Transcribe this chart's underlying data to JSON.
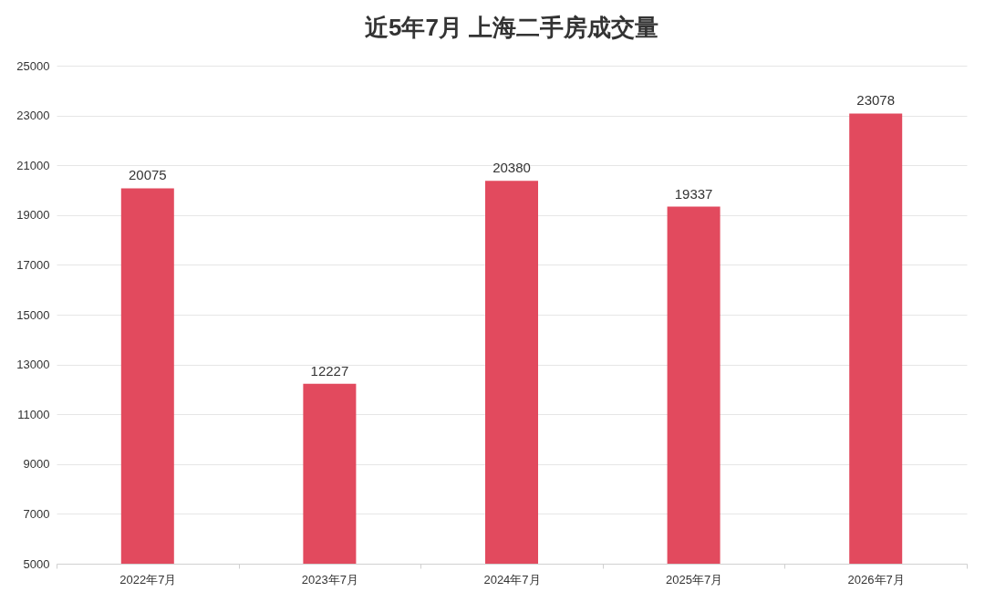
{
  "chart_data": {
    "type": "bar",
    "title": "近5年7月 上海二手房成交量",
    "categories": [
      "2022年7月",
      "2023年7月",
      "2024年7月",
      "2025年7月",
      "2026年7月"
    ],
    "values": [
      20075,
      12227,
      20380,
      19337,
      23078
    ],
    "color": "#e24a5e",
    "ylim": [
      5000,
      25000
    ],
    "yticks": [
      5000,
      7000,
      9000,
      11000,
      13000,
      15000,
      17000,
      19000,
      21000,
      23000,
      25000
    ],
    "grid": true,
    "data_labels": true
  }
}
